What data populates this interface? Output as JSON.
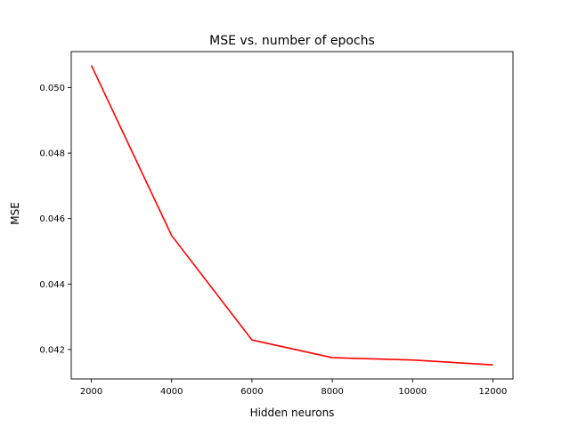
{
  "chart_data": {
    "type": "line",
    "title": "MSE vs. number of epochs",
    "xlabel": "Hidden neurons",
    "ylabel": "MSE",
    "x": [
      2000,
      4000,
      6000,
      8000,
      10000,
      12000
    ],
    "series": [
      {
        "values": [
          0.05068,
          0.04548,
          0.04229,
          0.04175,
          0.04168,
          0.04153
        ],
        "color": "#ff0000"
      }
    ],
    "xlim": [
      1500,
      12500
    ],
    "ylim": [
      0.0411,
      0.0511
    ],
    "xticks": [
      2000,
      4000,
      6000,
      8000,
      10000,
      12000
    ],
    "yticks": [
      0.042,
      0.044,
      0.046,
      0.048,
      0.05
    ],
    "xtick_labels": [
      "2000",
      "4000",
      "6000",
      "8000",
      "10000",
      "12000"
    ],
    "ytick_labels": [
      "0.042",
      "0.044",
      "0.046",
      "0.048",
      "0.050"
    ],
    "grid": false,
    "legend": "none"
  }
}
